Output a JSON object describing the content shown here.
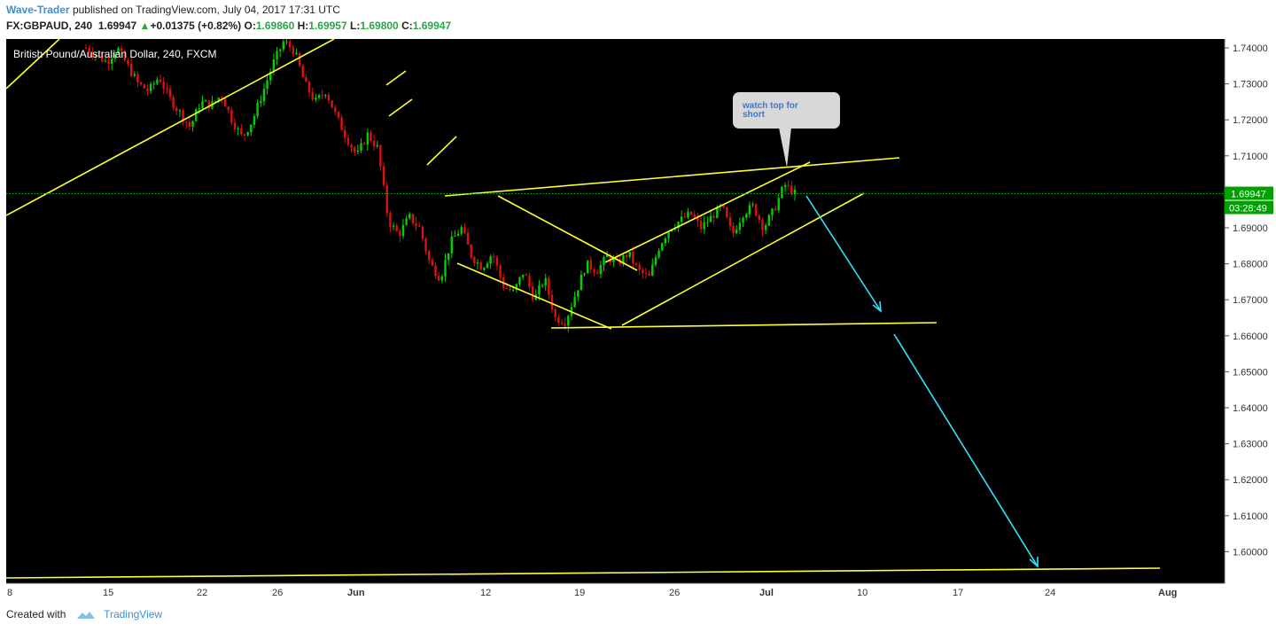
{
  "header": {
    "author": "Wave-Trader",
    "published_text": "published on TradingView.com, July 04, 2017 17:31 UTC",
    "symbol": "FX:GBPAUD, 240",
    "last": "1.69947",
    "change_arrow": "▲",
    "change": "+0.01375 (+0.82%)",
    "o_label": "O:",
    "o_val": "1.69860",
    "h_label": "H:",
    "h_val": "1.69957",
    "l_label": "L:",
    "l_val": "1.69800",
    "c_label": "C:",
    "c_val": "1.69947"
  },
  "footer": {
    "created_with": "Created with",
    "brand": "TradingView",
    "brand_icon": "tradingview-logo-icon"
  },
  "chart_data": {
    "type": "candlestick",
    "title": "British Pound/Australian Dollar, 240, FXCM",
    "ylim": [
      1.5925,
      1.7425
    ],
    "y_ticks": [
      "1.74000",
      "1.73000",
      "1.72000",
      "1.71000",
      "1.70000",
      "1.69000",
      "1.68000",
      "1.67000",
      "1.66000",
      "1.65000",
      "1.64000",
      "1.63000",
      "1.62000",
      "1.61000",
      "1.60000"
    ],
    "x_ticks": [
      "8",
      "15",
      "22",
      "26",
      "Jun",
      "12",
      "19",
      "26",
      "Jul",
      "10",
      "17",
      "24",
      "Aug"
    ],
    "last_price_label": "1.69947",
    "countdown_label": "03:28:49",
    "last_price": 1.69947,
    "annotation": "watch top for short",
    "colors": {
      "background": "#000000",
      "up": "#00d200",
      "down": "#e01010",
      "trendline": "#ffff33",
      "projection": "#33e0ff",
      "price_line": "#00c800",
      "callout": "#d8d8d8",
      "callout_text": "#3a78d6"
    },
    "candles_close": [
      1.74,
      1.738,
      1.736,
      1.74,
      1.735,
      1.73,
      1.728,
      1.732,
      1.726,
      1.722,
      1.718,
      1.725,
      1.724,
      1.727,
      1.72,
      1.715,
      1.72,
      1.728,
      1.736,
      1.742,
      1.739,
      1.73,
      1.725,
      1.728,
      1.721,
      1.715,
      1.71,
      1.716,
      1.712,
      1.692,
      1.688,
      1.693,
      1.69,
      1.68,
      1.676,
      1.686,
      1.69,
      1.682,
      1.679,
      1.683,
      1.674,
      1.672,
      1.678,
      1.67,
      1.676,
      1.665,
      1.664,
      1.672,
      1.68,
      1.678,
      1.682,
      1.68,
      1.683,
      1.678,
      1.676,
      1.685,
      1.69,
      1.692,
      1.694,
      1.69,
      1.693,
      1.696,
      1.688,
      1.694,
      1.696,
      1.69,
      1.695,
      1.702,
      1.6995
    ]
  }
}
